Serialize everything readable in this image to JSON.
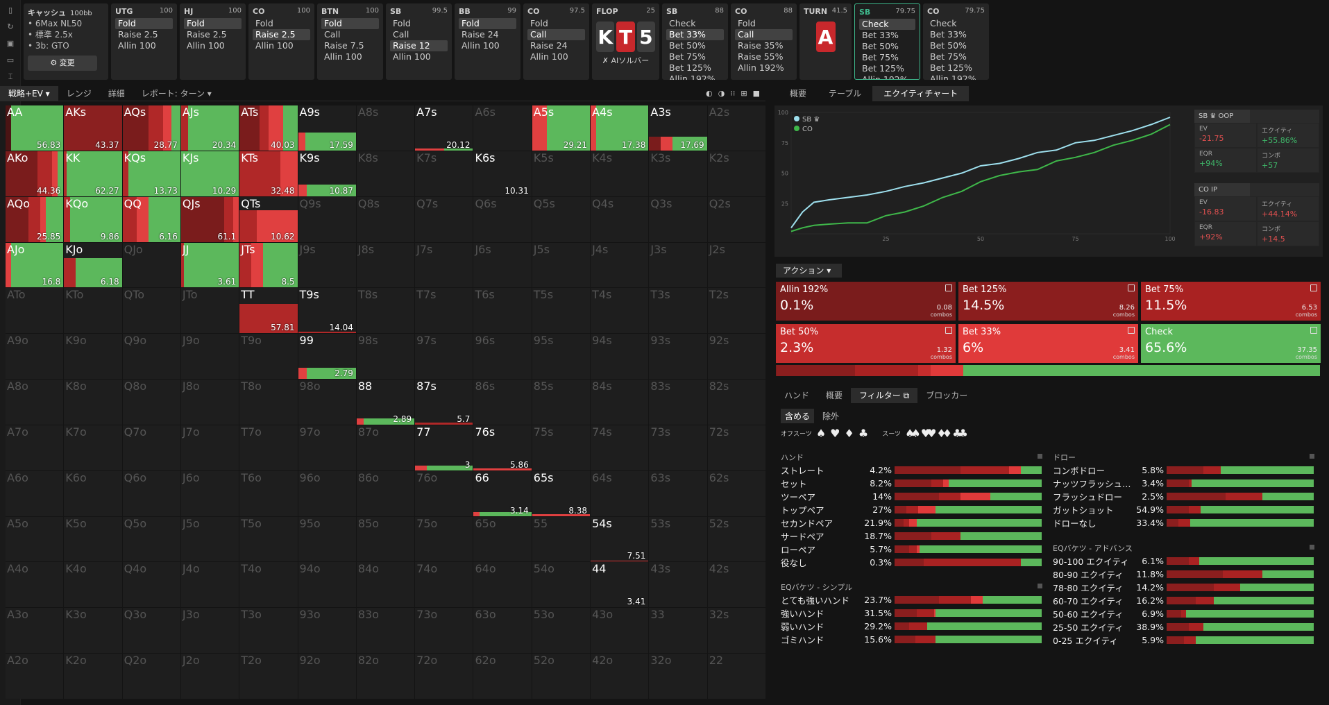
{
  "sidebar_icons": [
    "bookmark-icon",
    "history-icon",
    "save-icon",
    "gamepad-icon",
    "layout-icon"
  ],
  "game": {
    "title": "キャッシュ",
    "stack": "100bb",
    "lines": [
      "6Max NL50",
      "標準 2.5x",
      "3b: GTO"
    ],
    "change": "⚙ 変更"
  },
  "columns": [
    {
      "pos": "UTG",
      "stack": "100",
      "opts": [
        "Fold",
        "Raise 2.5",
        "Allin 100"
      ],
      "sel": 0
    },
    {
      "pos": "HJ",
      "stack": "100",
      "opts": [
        "Fold",
        "Raise 2.5",
        "Allin 100"
      ],
      "sel": 0
    },
    {
      "pos": "CO",
      "stack": "100",
      "opts": [
        "Fold",
        "Raise 2.5",
        "Allin 100"
      ],
      "sel": 1
    },
    {
      "pos": "BTN",
      "stack": "100",
      "opts": [
        "Fold",
        "Call",
        "Raise 7.5",
        "Allin 100"
      ],
      "sel": 0
    },
    {
      "pos": "SB",
      "stack": "99.5",
      "opts": [
        "Fold",
        "Call",
        "Raise 12",
        "Allin 100"
      ],
      "sel": 2
    },
    {
      "pos": "BB",
      "stack": "99",
      "opts": [
        "Fold",
        "Raise 24",
        "Allin 100"
      ],
      "sel": 0
    },
    {
      "pos": "CO",
      "stack": "97.5",
      "opts": [
        "Fold",
        "Call",
        "Raise 24",
        "Allin 100"
      ],
      "sel": 1
    },
    {
      "pos": "SB",
      "stack": "88",
      "opts": [
        "Check",
        "Bet 33%",
        "Bet 50%",
        "Bet 75%",
        "Bet 125%",
        "Allin 192%"
      ],
      "sel": 1
    },
    {
      "pos": "CO",
      "stack": "88",
      "opts": [
        "Fold",
        "Call",
        "Raise 35%",
        "Raise 55%",
        "Allin 192%"
      ],
      "sel": 1
    },
    {
      "pos": "SB",
      "stack": "79.75",
      "opts": [
        "Check",
        "Bet 33%",
        "Bet 50%",
        "Bet 75%",
        "Bet 125%",
        "Allin 192%"
      ],
      "sel": 0,
      "active": true
    },
    {
      "pos": "CO",
      "stack": "79.75",
      "opts": [
        "Check",
        "Bet 33%",
        "Bet 50%",
        "Bet 75%",
        "Bet 125%",
        "Allin 192%"
      ],
      "sel": -1
    }
  ],
  "flop": {
    "label": "FLOP",
    "pot": "25",
    "cards": [
      "K",
      "T",
      "5"
    ],
    "solver": "✗ AIソルバー"
  },
  "turn": {
    "label": "TURN",
    "pot": "41.5",
    "card": "A"
  },
  "main_tabs": [
    "戦略+EV ▾",
    "レンジ",
    "詳細",
    "レポート: ターン ▾"
  ],
  "view_icons": [
    "◐",
    "◑",
    "⁝⁝",
    "⊞",
    "■"
  ],
  "grid": {
    "AA": {
      "ev": "56.83",
      "b": [
        [
          10,
          "#4a1414"
        ],
        [
          90,
          "#5cb85c"
        ]
      ]
    },
    "AKs": {
      "ev": "43.37",
      "b": [
        [
          100,
          "#8b2020"
        ]
      ]
    },
    "AQs": {
      "ev": "28.77",
      "b": [
        [
          45,
          "#7a1c1c"
        ],
        [
          25,
          "#b02828"
        ],
        [
          15,
          "#e04040"
        ],
        [
          15,
          "#5cb85c"
        ]
      ]
    },
    "AJs": {
      "ev": "20.34",
      "b": [
        [
          12,
          "#b02828"
        ],
        [
          88,
          "#5cb85c"
        ]
      ]
    },
    "ATs": {
      "ev": "40.03",
      "b": [
        [
          35,
          "#7a1c1c"
        ],
        [
          15,
          "#b02828"
        ],
        [
          25,
          "#e04040"
        ],
        [
          25,
          "#5cb85c"
        ]
      ]
    },
    "A9s": {
      "ev": "17.59",
      "b": [
        [
          12,
          "#e04040"
        ],
        [
          88,
          "#5cb85c"
        ]
      ],
      "h": 40
    },
    "A7s": {
      "ev": "20.12",
      "b": [
        [
          50,
          "#e04040"
        ],
        [
          50,
          "#5cb85c"
        ]
      ],
      "h": 4
    },
    "A5s": {
      "ev": "29.21",
      "b": [
        [
          25,
          "#e04040"
        ],
        [
          75,
          "#5cb85c"
        ]
      ]
    },
    "A4s": {
      "ev": "17.38",
      "b": [
        [
          10,
          "#e04040"
        ],
        [
          90,
          "#5cb85c"
        ]
      ]
    },
    "A3s": {
      "ev": "17.69",
      "b": [
        [
          20,
          "#7a1c1c"
        ],
        [
          20,
          "#e04040"
        ],
        [
          60,
          "#5cb85c"
        ]
      ],
      "h": 30
    },
    "AKo": {
      "ev": "44.36",
      "b": [
        [
          55,
          "#7a1c1c"
        ],
        [
          25,
          "#b02828"
        ],
        [
          10,
          "#e04040"
        ],
        [
          10,
          "#5cb85c"
        ]
      ]
    },
    "KK": {
      "ev": "62.27",
      "b": [
        [
          5,
          "#b02828"
        ],
        [
          95,
          "#5cb85c"
        ]
      ]
    },
    "KQs": {
      "ev": "13.73",
      "b": [
        [
          10,
          "#b02828"
        ],
        [
          90,
          "#5cb85c"
        ]
      ]
    },
    "KJs": {
      "ev": "10.29",
      "b": [
        [
          100,
          "#5cb85c"
        ]
      ]
    },
    "KTs": {
      "ev": "32.48",
      "b": [
        [
          70,
          "#b02828"
        ],
        [
          30,
          "#e04040"
        ]
      ]
    },
    "K9s": {
      "ev": "10.87",
      "b": [
        [
          15,
          "#e04040"
        ],
        [
          85,
          "#5cb85c"
        ]
      ],
      "h": 25
    },
    "K6s": {
      "ev": "10.31",
      "b": [],
      "h": 0
    },
    "AQo": {
      "ev": "25.85",
      "b": [
        [
          40,
          "#7a1c1c"
        ],
        [
          20,
          "#b02828"
        ],
        [
          10,
          "#e04040"
        ],
        [
          30,
          "#5cb85c"
        ]
      ]
    },
    "KQo": {
      "ev": "9.86",
      "b": [
        [
          10,
          "#b02828"
        ],
        [
          90,
          "#5cb85c"
        ]
      ]
    },
    "QQ": {
      "ev": "6.16",
      "b": [
        [
          25,
          "#b02828"
        ],
        [
          20,
          "#e04040"
        ],
        [
          55,
          "#5cb85c"
        ]
      ]
    },
    "QJs": {
      "ev": "61.1",
      "b": [
        [
          75,
          "#7a1c1c"
        ],
        [
          15,
          "#b02828"
        ],
        [
          10,
          "#e04040"
        ]
      ]
    },
    "QTs": {
      "ev": "10.62",
      "b": [
        [
          30,
          "#b02828"
        ],
        [
          70,
          "#e04040"
        ]
      ],
      "h": 70
    },
    "AJo": {
      "ev": "16.8",
      "b": [
        [
          10,
          "#e04040"
        ],
        [
          90,
          "#5cb85c"
        ]
      ]
    },
    "KJo": {
      "ev": "6.18",
      "b": [
        [
          20,
          "#b02828"
        ],
        [
          80,
          "#5cb85c"
        ]
      ],
      "h": 65
    },
    "JJ": {
      "ev": "3.61",
      "b": [
        [
          5,
          "#b02828"
        ],
        [
          95,
          "#5cb85c"
        ]
      ]
    },
    "JTs": {
      "ev": "8.5",
      "b": [
        [
          20,
          "#b02828"
        ],
        [
          20,
          "#e04040"
        ],
        [
          60,
          "#5cb85c"
        ]
      ]
    },
    "TT": {
      "ev": "57.81",
      "b": [
        [
          100,
          "#b02828"
        ]
      ],
      "h": 65
    },
    "T9s": {
      "ev": "14.04",
      "b": [
        [
          100,
          "#b02828"
        ]
      ],
      "h": 4
    },
    "99": {
      "ev": "2.79",
      "b": [
        [
          15,
          "#e04040"
        ],
        [
          85,
          "#5cb85c"
        ]
      ],
      "h": 25
    },
    "88": {
      "ev": "2.89",
      "b": [
        [
          12,
          "#e04040"
        ],
        [
          88,
          "#5cb85c"
        ]
      ],
      "h": 14
    },
    "87s": {
      "ev": "5.7",
      "b": [
        [
          100,
          "#b02828"
        ]
      ],
      "h": 4
    },
    "77": {
      "ev": "3",
      "b": [
        [
          20,
          "#e04040"
        ],
        [
          80,
          "#5cb85c"
        ]
      ],
      "h": 10
    },
    "76s": {
      "ev": "5.86",
      "b": [
        [
          100,
          "#e04040"
        ]
      ],
      "h": 4
    },
    "66": {
      "ev": "3.14",
      "b": [
        [
          10,
          "#e04040"
        ],
        [
          90,
          "#5cb85c"
        ]
      ],
      "h": 8
    },
    "65s": {
      "ev": "8.38",
      "b": [
        [
          100,
          "#e04040"
        ]
      ],
      "h": 4
    },
    "54s": {
      "ev": "7.51",
      "b": [
        [
          100,
          "#e04040"
        ]
      ],
      "h": 3
    },
    "44": {
      "ev": "3.41",
      "b": [],
      "h": 0
    }
  },
  "right_tabs": [
    "概要",
    "テーブル",
    "エクイティチャート"
  ],
  "eq_legend": [
    "SB ♛",
    "CO"
  ],
  "eq_axis": {
    "x": [
      "25",
      "50",
      "75",
      "100"
    ],
    "y": [
      "100",
      "75",
      "50",
      "25"
    ]
  },
  "chart_data": {
    "type": "line",
    "xlim": [
      0,
      100
    ],
    "ylim": [
      0,
      100
    ],
    "series": [
      {
        "name": "SB ♛",
        "color": "#9ee0ee",
        "x": [
          0,
          3,
          6,
          10,
          15,
          20,
          25,
          30,
          35,
          40,
          45,
          50,
          55,
          60,
          65,
          70,
          75,
          80,
          85,
          90,
          95,
          100
        ],
        "y": [
          5,
          18,
          26,
          28,
          30,
          32,
          35,
          39,
          42,
          46,
          50,
          56,
          58,
          62,
          67,
          69,
          75,
          77,
          81,
          85,
          90,
          96
        ]
      },
      {
        "name": "CO",
        "color": "#3fb84a",
        "x": [
          0,
          3,
          6,
          10,
          15,
          20,
          25,
          30,
          35,
          40,
          45,
          50,
          55,
          60,
          65,
          70,
          75,
          80,
          85,
          90,
          95,
          100
        ],
        "y": [
          2,
          5,
          7,
          8,
          9,
          9,
          15,
          18,
          23,
          30,
          35,
          43,
          48,
          51,
          53,
          60,
          63,
          67,
          73,
          77,
          82,
          90
        ]
      }
    ]
  },
  "sb_box": {
    "hd": "SB ♛ OOP",
    "ev_l": "EV",
    "ev": "-21.75",
    "eq_l": "エクイティ",
    "eq": "+55.86%",
    "eqr_l": "EQR",
    "eqr": "+94%",
    "cmb_l": "コンボ",
    "cmb": "+57"
  },
  "co_box": {
    "hd": "CO IP",
    "ev_l": "EV",
    "ev": "-16.83",
    "eq_l": "エクイティ",
    "eq": "+44.14%",
    "eqr_l": "EQR",
    "eqr": "+92%",
    "cmb_l": "コンボ",
    "cmb": "+14.5"
  },
  "action_hdr": "アクション ▾",
  "actions": [
    {
      "name": "Allin 192%",
      "pct": "0.1%",
      "combos": "0.08",
      "color": "#7a1c1c",
      "freq": 0.1
    },
    {
      "name": "Bet 125%",
      "pct": "14.5%",
      "combos": "8.26",
      "color": "#8b1e1e",
      "freq": 14.5
    },
    {
      "name": "Bet 75%",
      "pct": "11.5%",
      "combos": "6.53",
      "color": "#a92222",
      "freq": 11.5
    },
    {
      "name": "Bet 50%",
      "pct": "2.3%",
      "combos": "1.32",
      "color": "#c62d2d",
      "freq": 2.3
    },
    {
      "name": "Bet 33%",
      "pct": "6%",
      "combos": "3.41",
      "color": "#e03a3a",
      "freq": 6
    },
    {
      "name": "Check",
      "pct": "65.6%",
      "combos": "37.35",
      "color": "#5cb85c",
      "freq": 65.6
    }
  ],
  "combos_label": "combos",
  "bottom_tabs": [
    "ハンド",
    "概要",
    "フィルター ⧉",
    "ブロッカー"
  ],
  "include": [
    "含める",
    "除外"
  ],
  "offsuit_label": "オフスーツ",
  "suit_label": "スーツ",
  "suits": [
    "♠",
    "♥",
    "♦",
    "♣"
  ],
  "suits2": [
    "♠♠",
    "♥♥",
    "♦♦",
    "♣♣"
  ],
  "hands_title": "ハンド",
  "hands": [
    {
      "l": "ストレート",
      "p": "4.2%",
      "b": [
        [
          45,
          "#8b1e1e"
        ],
        [
          33,
          "#a92222"
        ],
        [
          8,
          "#e03a3a"
        ],
        [
          14,
          "#5cb85c"
        ]
      ]
    },
    {
      "l": "セット",
      "p": "8.2%",
      "b": [
        [
          25,
          "#8b1e1e"
        ],
        [
          8,
          "#a92222"
        ],
        [
          4,
          "#e03a3a"
        ],
        [
          63,
          "#5cb85c"
        ]
      ]
    },
    {
      "l": "ツーペア",
      "p": "14%",
      "b": [
        [
          30,
          "#8b1e1e"
        ],
        [
          15,
          "#a92222"
        ],
        [
          20,
          "#e03a3a"
        ],
        [
          35,
          "#5cb85c"
        ]
      ]
    },
    {
      "l": "トップペア",
      "p": "27%",
      "b": [
        [
          8,
          "#8b1e1e"
        ],
        [
          8,
          "#a92222"
        ],
        [
          12,
          "#e03a3a"
        ],
        [
          72,
          "#5cb85c"
        ]
      ]
    },
    {
      "l": "セカンドペア",
      "p": "21.9%",
      "b": [
        [
          6,
          "#8b1e1e"
        ],
        [
          4,
          "#a92222"
        ],
        [
          5,
          "#e03a3a"
        ],
        [
          85,
          "#5cb85c"
        ]
      ]
    },
    {
      "l": "サードペア",
      "p": "18.7%",
      "b": [
        [
          25,
          "#8b1e1e"
        ],
        [
          20,
          "#a92222"
        ],
        [
          0,
          "#e03a3a"
        ],
        [
          55,
          "#5cb85c"
        ]
      ]
    },
    {
      "l": "ローペア",
      "p": "5.7%",
      "b": [
        [
          10,
          "#8b1e1e"
        ],
        [
          5,
          "#a92222"
        ],
        [
          2,
          "#e03a3a"
        ],
        [
          83,
          "#5cb85c"
        ]
      ]
    },
    {
      "l": "役なし",
      "p": "0.3%",
      "b": [
        [
          20,
          "#8b1e1e"
        ],
        [
          66,
          "#a92222"
        ],
        [
          0,
          "#e03a3a"
        ],
        [
          14,
          "#5cb85c"
        ]
      ]
    }
  ],
  "eqs_title": "EQバケツ - シンプル",
  "eqs": [
    {
      "l": "とても強いハンド",
      "p": "23.7%",
      "b": [
        [
          30,
          "#8b1e1e"
        ],
        [
          22,
          "#a92222"
        ],
        [
          8,
          "#e03a3a"
        ],
        [
          40,
          "#5cb85c"
        ]
      ]
    },
    {
      "l": "強いハンド",
      "p": "31.5%",
      "b": [
        [
          15,
          "#8b1e1e"
        ],
        [
          12,
          "#a92222"
        ],
        [
          1,
          "#e03a3a"
        ],
        [
          72,
          "#5cb85c"
        ]
      ]
    },
    {
      "l": "弱いハンド",
      "p": "29.2%",
      "b": [
        [
          10,
          "#8b1e1e"
        ],
        [
          12,
          "#a92222"
        ],
        [
          0,
          "#e03a3a"
        ],
        [
          78,
          "#5cb85c"
        ]
      ]
    },
    {
      "l": "ゴミハンド",
      "p": "15.6%",
      "b": [
        [
          14,
          "#8b1e1e"
        ],
        [
          14,
          "#a92222"
        ],
        [
          0,
          "#e03a3a"
        ],
        [
          72,
          "#5cb85c"
        ]
      ]
    }
  ],
  "draws_title": "ドロー",
  "draws": [
    {
      "l": "コンボドロー",
      "p": "5.8%",
      "b": [
        [
          25,
          "#8b1e1e"
        ],
        [
          12,
          "#a92222"
        ],
        [
          0,
          "#e03a3a"
        ],
        [
          63,
          "#5cb85c"
        ]
      ]
    },
    {
      "l": "ナッツフラッシュ…",
      "p": "3.4%",
      "b": [
        [
          15,
          "#8b1e1e"
        ],
        [
          2,
          "#a92222"
        ],
        [
          0,
          "#e03a3a"
        ],
        [
          83,
          "#5cb85c"
        ]
      ]
    },
    {
      "l": "フラッシュドロー",
      "p": "2.5%",
      "b": [
        [
          40,
          "#8b1e1e"
        ],
        [
          25,
          "#a92222"
        ],
        [
          0,
          "#e03a3a"
        ],
        [
          35,
          "#5cb85c"
        ]
      ]
    },
    {
      "l": "ガットショット",
      "p": "54.9%",
      "b": [
        [
          15,
          "#8b1e1e"
        ],
        [
          8,
          "#a92222"
        ],
        [
          0,
          "#e03a3a"
        ],
        [
          77,
          "#5cb85c"
        ]
      ]
    },
    {
      "l": "ドローなし",
      "p": "33.4%",
      "b": [
        [
          8,
          "#8b1e1e"
        ],
        [
          8,
          "#a92222"
        ],
        [
          0,
          "#e03a3a"
        ],
        [
          84,
          "#5cb85c"
        ]
      ]
    }
  ],
  "eqa_title": "EQバケツ - アドバンス",
  "eqa": [
    {
      "l": "90-100 エクイティ",
      "p": "6.1%",
      "b": [
        [
          15,
          "#8b1e1e"
        ],
        [
          7,
          "#a92222"
        ],
        [
          0,
          "#e03a3a"
        ],
        [
          78,
          "#5cb85c"
        ]
      ]
    },
    {
      "l": "80-90 エクイティ",
      "p": "11.8%",
      "b": [
        [
          38,
          "#8b1e1e"
        ],
        [
          27,
          "#a92222"
        ],
        [
          0,
          "#e03a3a"
        ],
        [
          35,
          "#5cb85c"
        ]
      ]
    },
    {
      "l": "78-80 エクイティ",
      "p": "14.2%",
      "b": [
        [
          32,
          "#8b1e1e"
        ],
        [
          18,
          "#a92222"
        ],
        [
          0,
          "#e03a3a"
        ],
        [
          50,
          "#5cb85c"
        ]
      ]
    },
    {
      "l": "60-70 エクイティ",
      "p": "16.2%",
      "b": [
        [
          20,
          "#8b1e1e"
        ],
        [
          12,
          "#a92222"
        ],
        [
          0,
          "#e03a3a"
        ],
        [
          68,
          "#5cb85c"
        ]
      ]
    },
    {
      "l": "50-60 エクイティ",
      "p": "6.9%",
      "b": [
        [
          10,
          "#8b1e1e"
        ],
        [
          3,
          "#a92222"
        ],
        [
          0,
          "#e03a3a"
        ],
        [
          87,
          "#5cb85c"
        ]
      ]
    },
    {
      "l": "25-50 エクイティ",
      "p": "38.9%",
      "b": [
        [
          15,
          "#8b1e1e"
        ],
        [
          10,
          "#a92222"
        ],
        [
          0,
          "#e03a3a"
        ],
        [
          75,
          "#5cb85c"
        ]
      ]
    },
    {
      "l": "0-25 エクイティ",
      "p": "5.9%",
      "b": [
        [
          12,
          "#8b1e1e"
        ],
        [
          8,
          "#a92222"
        ],
        [
          0,
          "#e03a3a"
        ],
        [
          80,
          "#5cb85c"
        ]
      ]
    }
  ]
}
